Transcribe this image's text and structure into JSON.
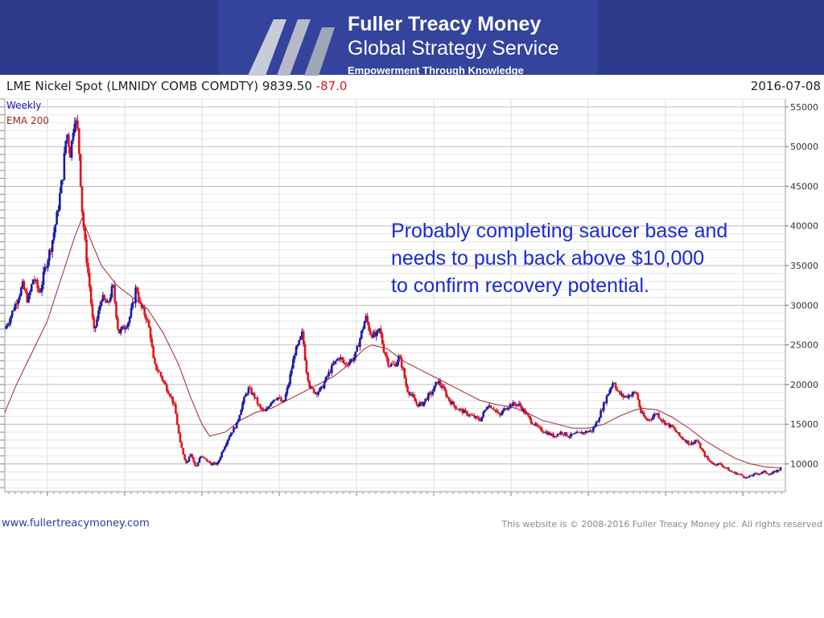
{
  "header": {
    "brand_name": "Fuller Treacy Money",
    "brand_service": "Global Strategy Service",
    "tagline": "Empowerment Through Knowledge"
  },
  "chart_data": {
    "type": "candlestick",
    "title": "LME Nickel Spot (LMNIDY COMB COMDTY)",
    "last_price": "9839.50",
    "change": "-87.0",
    "date": "2016-07-08",
    "legend": [
      "Weekly",
      "EMA 200"
    ],
    "legend_placement": "top-left",
    "x_range": [
      2006.45,
      2016.55
    ],
    "x_ticks": [
      2007,
      2008,
      2009,
      2010,
      2011,
      2012,
      2013,
      2014,
      2015,
      2016
    ],
    "y_range": [
      6500,
      56000
    ],
    "y_ticks": [
      10000,
      15000,
      20000,
      25000,
      30000,
      35000,
      40000,
      45000,
      50000,
      55000
    ],
    "y_axis_side": "right",
    "grid": true,
    "colors": {
      "up": "#1a1aaa",
      "down": "#e0141e",
      "ema": "#a02828",
      "text": "#222222",
      "change": "#e0141e"
    },
    "price_path": [
      [
        2006.45,
        27000
      ],
      [
        2006.52,
        28500
      ],
      [
        2006.6,
        30500
      ],
      [
        2006.68,
        32500
      ],
      [
        2006.75,
        30500
      ],
      [
        2006.82,
        33500
      ],
      [
        2006.9,
        31500
      ],
      [
        2006.98,
        35000
      ],
      [
        2007.05,
        37500
      ],
      [
        2007.12,
        41000
      ],
      [
        2007.2,
        46500
      ],
      [
        2007.25,
        52000
      ],
      [
        2007.3,
        49000
      ],
      [
        2007.35,
        54000
      ],
      [
        2007.4,
        51500
      ],
      [
        2007.45,
        42000
      ],
      [
        2007.5,
        36500
      ],
      [
        2007.55,
        32000
      ],
      [
        2007.6,
        26500
      ],
      [
        2007.65,
        28500
      ],
      [
        2007.7,
        31000
      ],
      [
        2007.78,
        30000
      ],
      [
        2007.85,
        32500
      ],
      [
        2007.92,
        26500
      ],
      [
        2007.97,
        27000
      ],
      [
        2008.05,
        28000
      ],
      [
        2008.12,
        30500
      ],
      [
        2008.15,
        32500
      ],
      [
        2008.2,
        30000
      ],
      [
        2008.28,
        28500
      ],
      [
        2008.33,
        26500
      ],
      [
        2008.38,
        22500
      ],
      [
        2008.45,
        21500
      ],
      [
        2008.52,
        20000
      ],
      [
        2008.6,
        18500
      ],
      [
        2008.65,
        17000
      ],
      [
        2008.72,
        12500
      ],
      [
        2008.8,
        10000
      ],
      [
        2008.85,
        11500
      ],
      [
        2008.92,
        9500
      ],
      [
        2008.98,
        11000
      ],
      [
        2009.05,
        10500
      ],
      [
        2009.12,
        10000
      ],
      [
        2009.2,
        10000
      ],
      [
        2009.28,
        12000
      ],
      [
        2009.35,
        13500
      ],
      [
        2009.45,
        15000
      ],
      [
        2009.52,
        17500
      ],
      [
        2009.6,
        19500
      ],
      [
        2009.68,
        18500
      ],
      [
        2009.75,
        17000
      ],
      [
        2009.82,
        16500
      ],
      [
        2009.9,
        18000
      ],
      [
        2009.98,
        18500
      ],
      [
        2010.05,
        17500
      ],
      [
        2010.12,
        20000
      ],
      [
        2010.2,
        24000
      ],
      [
        2010.25,
        25000
      ],
      [
        2010.3,
        26500
      ],
      [
        2010.35,
        22000
      ],
      [
        2010.4,
        19500
      ],
      [
        2010.48,
        19000
      ],
      [
        2010.55,
        19500
      ],
      [
        2010.62,
        21000
      ],
      [
        2010.7,
        22500
      ],
      [
        2010.78,
        23500
      ],
      [
        2010.85,
        22500
      ],
      [
        2010.92,
        23000
      ],
      [
        2010.98,
        23500
      ],
      [
        2011.05,
        26000
      ],
      [
        2011.12,
        28500
      ],
      [
        2011.18,
        26500
      ],
      [
        2011.25,
        26000
      ],
      [
        2011.3,
        27000
      ],
      [
        2011.35,
        24500
      ],
      [
        2011.42,
        22500
      ],
      [
        2011.5,
        22500
      ],
      [
        2011.55,
        23500
      ],
      [
        2011.6,
        22000
      ],
      [
        2011.65,
        19500
      ],
      [
        2011.72,
        18500
      ],
      [
        2011.78,
        17500
      ],
      [
        2011.85,
        17500
      ],
      [
        2011.92,
        18500
      ],
      [
        2011.98,
        19000
      ],
      [
        2012.05,
        20500
      ],
      [
        2012.12,
        19500
      ],
      [
        2012.2,
        18000
      ],
      [
        2012.3,
        17000
      ],
      [
        2012.4,
        16500
      ],
      [
        2012.5,
        16000
      ],
      [
        2012.6,
        15500
      ],
      [
        2012.7,
        17500
      ],
      [
        2012.78,
        17000
      ],
      [
        2012.85,
        16000
      ],
      [
        2012.92,
        17000
      ],
      [
        2013.0,
        17500
      ],
      [
        2013.1,
        17500
      ],
      [
        2013.18,
        16500
      ],
      [
        2013.25,
        15500
      ],
      [
        2013.35,
        14500
      ],
      [
        2013.45,
        14000
      ],
      [
        2013.55,
        13500
      ],
      [
        2013.65,
        14000
      ],
      [
        2013.75,
        13500
      ],
      [
        2013.85,
        13800
      ],
      [
        2013.95,
        14000
      ],
      [
        2014.05,
        14200
      ],
      [
        2014.12,
        15500
      ],
      [
        2014.2,
        17500
      ],
      [
        2014.28,
        19500
      ],
      [
        2014.33,
        20500
      ],
      [
        2014.38,
        19000
      ],
      [
        2014.45,
        18500
      ],
      [
        2014.5,
        18500
      ],
      [
        2014.55,
        18800
      ],
      [
        2014.62,
        19000
      ],
      [
        2014.68,
        16500
      ],
      [
        2014.75,
        15500
      ],
      [
        2014.82,
        15800
      ],
      [
        2014.88,
        16500
      ],
      [
        2014.95,
        15500
      ],
      [
        2015.02,
        15000
      ],
      [
        2015.1,
        14500
      ],
      [
        2015.18,
        13500
      ],
      [
        2015.25,
        13000
      ],
      [
        2015.32,
        12500
      ],
      [
        2015.4,
        13000
      ],
      [
        2015.48,
        11500
      ],
      [
        2015.55,
        10500
      ],
      [
        2015.62,
        10000
      ],
      [
        2015.7,
        10000
      ],
      [
        2015.78,
        9500
      ],
      [
        2015.85,
        9000
      ],
      [
        2015.92,
        8800
      ],
      [
        2016.0,
        8500
      ],
      [
        2016.05,
        8200
      ],
      [
        2016.12,
        8600
      ],
      [
        2016.2,
        8800
      ],
      [
        2016.28,
        9000
      ],
      [
        2016.35,
        8700
      ],
      [
        2016.42,
        9000
      ],
      [
        2016.47,
        9300
      ],
      [
        2016.5,
        9839.5
      ]
    ],
    "ema200": [
      [
        2006.45,
        16500
      ],
      [
        2006.6,
        20000
      ],
      [
        2006.8,
        24000
      ],
      [
        2007.0,
        28000
      ],
      [
        2007.2,
        34000
      ],
      [
        2007.35,
        38500
      ],
      [
        2007.45,
        41000
      ],
      [
        2007.55,
        38500
      ],
      [
        2007.7,
        35000
      ],
      [
        2007.9,
        32500
      ],
      [
        2008.1,
        31000
      ],
      [
        2008.3,
        29500
      ],
      [
        2008.5,
        26500
      ],
      [
        2008.7,
        22500
      ],
      [
        2008.85,
        18500
      ],
      [
        2009.0,
        15000
      ],
      [
        2009.1,
        13500
      ],
      [
        2009.3,
        14000
      ],
      [
        2009.5,
        15500
      ],
      [
        2009.7,
        16500
      ],
      [
        2009.9,
        17000
      ],
      [
        2010.1,
        18000
      ],
      [
        2010.3,
        19000
      ],
      [
        2010.5,
        20000
      ],
      [
        2010.7,
        21000
      ],
      [
        2010.9,
        22500
      ],
      [
        2011.1,
        24500
      ],
      [
        2011.2,
        25000
      ],
      [
        2011.4,
        24500
      ],
      [
        2011.6,
        23000
      ],
      [
        2011.8,
        22000
      ],
      [
        2012.0,
        21000
      ],
      [
        2012.2,
        20000
      ],
      [
        2012.4,
        19000
      ],
      [
        2012.6,
        18000
      ],
      [
        2012.8,
        17500
      ],
      [
        2013.0,
        17200
      ],
      [
        2013.2,
        16500
      ],
      [
        2013.4,
        15500
      ],
      [
        2013.6,
        15000
      ],
      [
        2013.8,
        14500
      ],
      [
        2014.0,
        14500
      ],
      [
        2014.2,
        15000
      ],
      [
        2014.4,
        16000
      ],
      [
        2014.6,
        16800
      ],
      [
        2014.7,
        17000
      ],
      [
        2014.9,
        16800
      ],
      [
        2015.1,
        15800
      ],
      [
        2015.3,
        14500
      ],
      [
        2015.5,
        13000
      ],
      [
        2015.7,
        11800
      ],
      [
        2015.9,
        10700
      ],
      [
        2016.1,
        10000
      ],
      [
        2016.3,
        9600
      ],
      [
        2016.5,
        9500
      ]
    ]
  },
  "annotation": {
    "lines": [
      "Probably completing saucer base and",
      "needs to push back above $10,000",
      "to confirm recovery potential."
    ]
  },
  "footer": {
    "website": "www.fullertreacymoney.com",
    "copyright": "This website is © 2008-2016 Fuller Treacy Money plc. All rights reserved"
  }
}
